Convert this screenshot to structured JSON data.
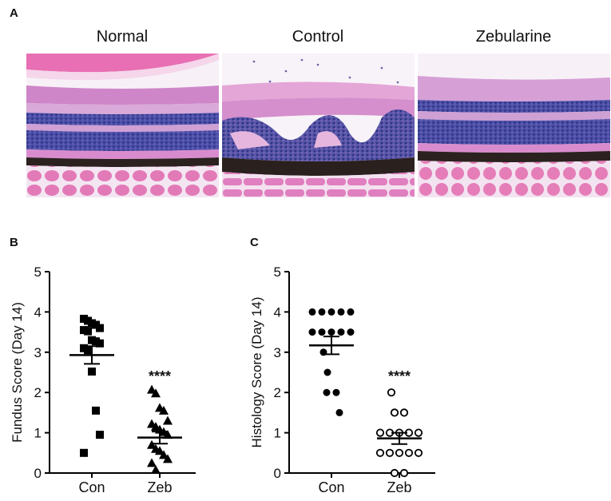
{
  "panel_a": {
    "letter": "A",
    "images": [
      {
        "title": "Normal"
      },
      {
        "title": "Control"
      },
      {
        "title": "Zebularine"
      }
    ]
  },
  "chart_data": [
    {
      "panel": "B",
      "type": "scatter",
      "ylabel": "Fundus Score (Day 14)",
      "ylim": [
        0,
        5
      ],
      "yticks": [
        "0",
        "1",
        "2",
        "3",
        "4",
        "5"
      ],
      "categories": [
        "Con",
        "Zeb"
      ],
      "significance": "****",
      "groups": [
        {
          "name": "Con",
          "marker": "square-filled",
          "mean": 2.93,
          "sem": 0.22,
          "values": [
            3.83,
            3.78,
            3.72,
            3.68,
            3.6,
            3.55,
            3.52,
            3.3,
            3.27,
            3.22,
            3.1,
            3.05,
            2.52,
            1.55,
            0.95,
            0.5
          ]
        },
        {
          "name": "Zeb",
          "marker": "triangle-filled",
          "mean": 0.88,
          "sem": 0.15,
          "values": [
            2.07,
            1.98,
            1.62,
            1.55,
            1.3,
            1.22,
            1.15,
            1.08,
            1.02,
            0.95,
            0.7,
            0.6,
            0.55,
            0.45,
            0.35,
            0.25,
            0.08
          ]
        }
      ]
    },
    {
      "panel": "C",
      "type": "scatter",
      "ylabel": "Histology Score (Day 14)",
      "ylim": [
        0,
        5
      ],
      "yticks": [
        "0",
        "1",
        "2",
        "3",
        "4",
        "5"
      ],
      "categories": [
        "Con",
        "Zeb"
      ],
      "significance": "****",
      "groups": [
        {
          "name": "Con",
          "marker": "circle-filled",
          "mean": 3.17,
          "sem": 0.22,
          "values": [
            4,
            4,
            4,
            4,
            4,
            3.5,
            3.5,
            3.5,
            3.5,
            3.5,
            3.0,
            2.5,
            2.0,
            2.0,
            1.5
          ]
        },
        {
          "name": "Zeb",
          "marker": "circle-open",
          "mean": 0.86,
          "sem": 0.14,
          "values": [
            2.0,
            1.5,
            1.5,
            1.0,
            1.0,
            1.0,
            1.0,
            1.0,
            0.5,
            0.5,
            0.5,
            0.5,
            0.5,
            0,
            0
          ]
        }
      ]
    }
  ]
}
